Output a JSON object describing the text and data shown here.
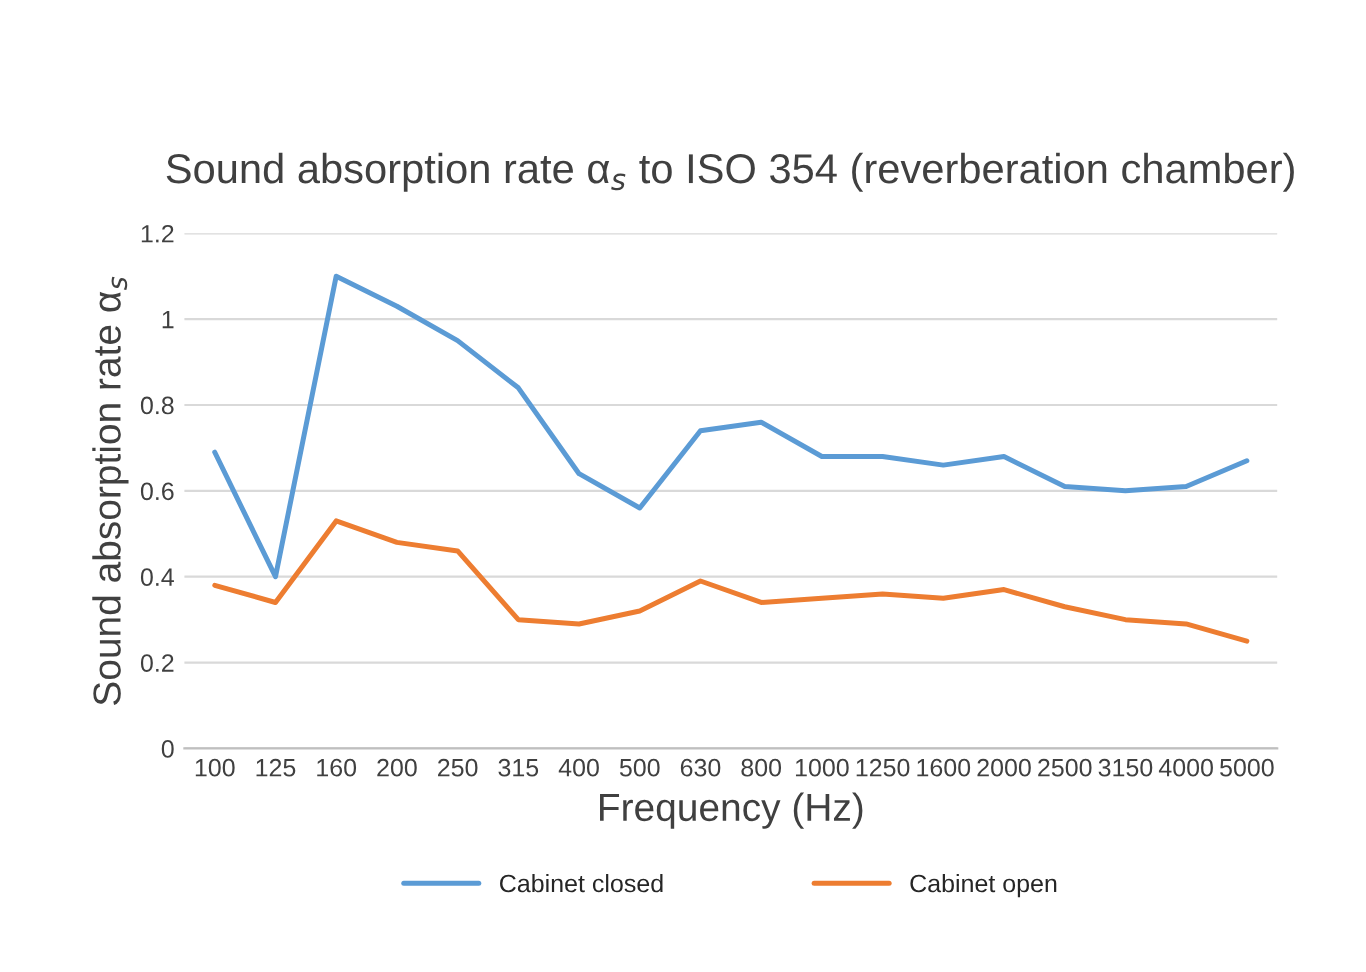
{
  "chart_data": {
    "type": "line",
    "title": "Sound absorption rate α$_{s}$ to ISO 354 (reverberation chamber)",
    "xlabel": "Frequency (Hz)",
    "ylabel": "Sound absorption rate α$_{s}$",
    "categories": [
      "100",
      "125",
      "160",
      "200",
      "250",
      "315",
      "400",
      "500",
      "630",
      "800",
      "1000",
      "1250",
      "1600",
      "2000",
      "2500",
      "3150",
      "4000",
      "5000"
    ],
    "series": [
      {
        "name": "Cabinet closed",
        "color": "#5b9bd5",
        "values": [
          0.69,
          0.4,
          1.1,
          1.03,
          0.95,
          0.84,
          0.64,
          0.56,
          0.74,
          0.76,
          0.68,
          0.68,
          0.66,
          0.68,
          0.61,
          0.6,
          0.61,
          0.67
        ]
      },
      {
        "name": "Cabinet open",
        "color": "#ed7d31",
        "values": [
          0.38,
          0.34,
          0.53,
          0.48,
          0.46,
          0.3,
          0.29,
          0.32,
          0.39,
          0.34,
          0.35,
          0.36,
          0.35,
          0.37,
          0.33,
          0.3,
          0.29,
          0.25
        ]
      }
    ],
    "ylim": [
      0,
      1.2
    ],
    "yticks": [
      0,
      0.2,
      0.4,
      0.6,
      0.8,
      1,
      1.2
    ],
    "grid": "y",
    "legend": "bottom",
    "marker": "none",
    "line_style": "solid"
  }
}
